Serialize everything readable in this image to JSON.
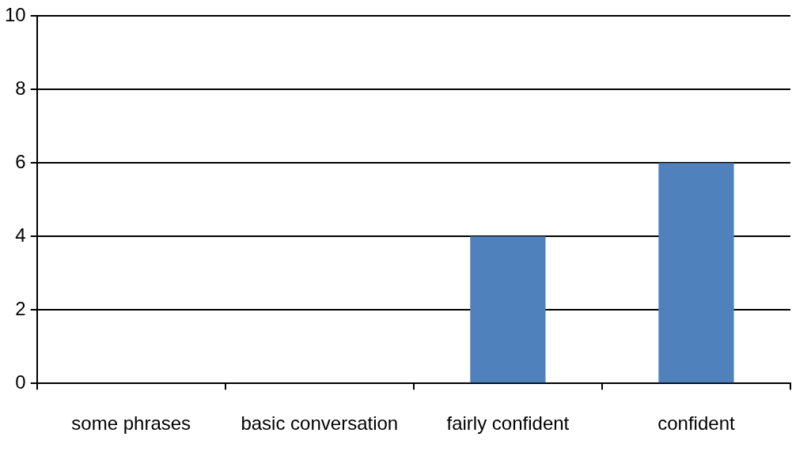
{
  "chart_data": {
    "type": "bar",
    "categories": [
      "some phrases",
      "basic conversation",
      "fairly confident",
      "confident"
    ],
    "values": [
      0,
      0,
      4,
      6
    ],
    "color": "#4f81bd",
    "ylim": [
      0,
      10
    ],
    "yticks": [
      0,
      2,
      4,
      6,
      8,
      10
    ],
    "grid": "y",
    "legend": false
  }
}
